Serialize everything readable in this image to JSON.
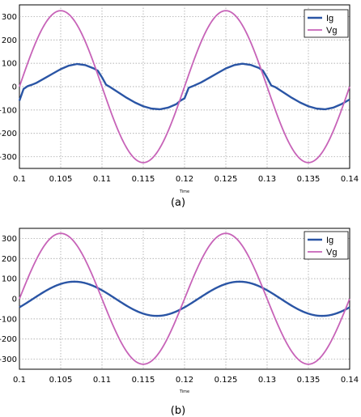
{
  "chart_data": [
    {
      "type": "line",
      "caption": "(a)",
      "xlabel": "Time",
      "ylabel": "",
      "title": "",
      "xlim": [
        0.1,
        0.14
      ],
      "ylim": [
        -350,
        350
      ],
      "xticks": [
        "0.1",
        "0.105",
        "0.11",
        "0.115",
        "0.12",
        "0.125",
        "0.13",
        "0.135",
        "0.14"
      ],
      "yticks": [
        "300",
        "200",
        "100",
        "0",
        "-100",
        "-200",
        "-300"
      ],
      "grid": true,
      "legend_position": "top-right",
      "series": [
        {
          "name": "Ig",
          "color": "#2a55a5",
          "x": [
            0.1,
            0.1005,
            0.101,
            0.1015,
            0.102,
            0.103,
            0.104,
            0.105,
            0.106,
            0.107,
            0.108,
            0.109,
            0.1095,
            0.11,
            0.1105,
            0.111,
            0.112,
            0.113,
            0.114,
            0.115,
            0.116,
            0.117,
            0.118,
            0.119,
            0.1195,
            0.12,
            0.1205,
            0.121,
            0.122,
            0.123,
            0.124,
            0.125,
            0.126,
            0.127,
            0.128,
            0.129,
            0.1295,
            0.13,
            0.1305,
            0.131,
            0.132,
            0.133,
            0.134,
            0.135,
            0.136,
            0.137,
            0.138,
            0.139,
            0.14
          ],
          "values": [
            -60,
            -10,
            2,
            8,
            15,
            35,
            55,
            75,
            90,
            97,
            92,
            78,
            68,
            40,
            8,
            -2,
            -25,
            -48,
            -68,
            -84,
            -94,
            -97,
            -90,
            -75,
            -60,
            -50,
            -5,
            2,
            18,
            38,
            58,
            78,
            92,
            98,
            93,
            80,
            68,
            38,
            5,
            -2,
            -25,
            -48,
            -68,
            -84,
            -94,
            -97,
            -90,
            -75,
            -55
          ],
          "width": 2.4
        },
        {
          "name": "Vg",
          "color": "#c763b8",
          "function": "325*sin(2*pi*50*(t-0.1))",
          "amplitude": 325,
          "frequency_hz": 50,
          "width": 1.8
        }
      ]
    },
    {
      "type": "line",
      "caption": "(b)",
      "xlabel": "Time",
      "ylabel": "",
      "title": "",
      "xlim": [
        0.1,
        0.14
      ],
      "ylim": [
        -350,
        350
      ],
      "xticks": [
        "0.1",
        "0.105",
        "0.11",
        "0.115",
        "0.12",
        "0.125",
        "0.13",
        "0.135",
        "0.14"
      ],
      "yticks": [
        "300",
        "200",
        "100",
        "0",
        "-100",
        "-200",
        "-300"
      ],
      "grid": true,
      "legend_position": "top-right",
      "series": [
        {
          "name": "Ig",
          "color": "#2a55a5",
          "function": "85*sin(2*pi*50*(t-0.1) - 0.52)",
          "amplitude": 85,
          "frequency_hz": 50,
          "phase_rad": -0.52,
          "width": 2.4
        },
        {
          "name": "Vg",
          "color": "#c763b8",
          "function": "325*sin(2*pi*50*(t-0.1))",
          "amplitude": 325,
          "frequency_hz": 50,
          "width": 1.8
        }
      ]
    }
  ]
}
